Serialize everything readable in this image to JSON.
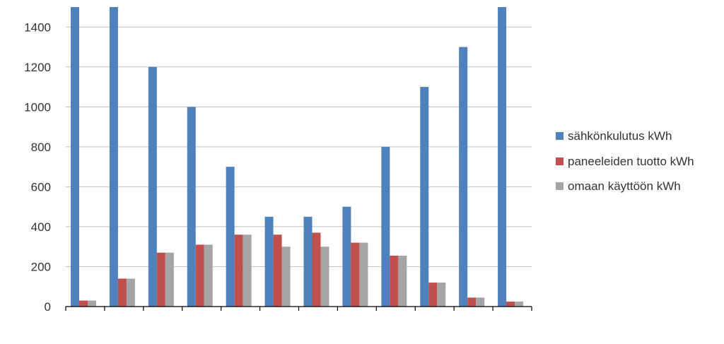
{
  "chart_data": {
    "type": "bar",
    "title": "",
    "xlabel": "",
    "ylabel": "",
    "ylim": [
      0,
      1500
    ],
    "yticks": [
      0,
      200,
      400,
      600,
      800,
      1000,
      1200,
      1400
    ],
    "grid": true,
    "legend_position": "right",
    "categories": [
      "",
      "",
      "",
      "",
      "",
      "",
      "",
      "",
      "",
      "",
      "",
      ""
    ],
    "series": [
      {
        "name": "sähkönkulutus kWh",
        "color": "#4f81bd",
        "values": [
          1500,
          1500,
          1200,
          1000,
          700,
          450,
          450,
          500,
          800,
          1100,
          1300,
          1500
        ]
      },
      {
        "name": "paneeleiden tuotto kWh",
        "color": "#c0504d",
        "values": [
          30,
          140,
          270,
          310,
          360,
          360,
          370,
          320,
          255,
          120,
          45,
          25
        ]
      },
      {
        "name": "omaan käyttöön kWh",
        "color": "#a5a5a5",
        "values": [
          30,
          140,
          270,
          310,
          360,
          300,
          300,
          320,
          255,
          120,
          45,
          25
        ]
      }
    ]
  }
}
